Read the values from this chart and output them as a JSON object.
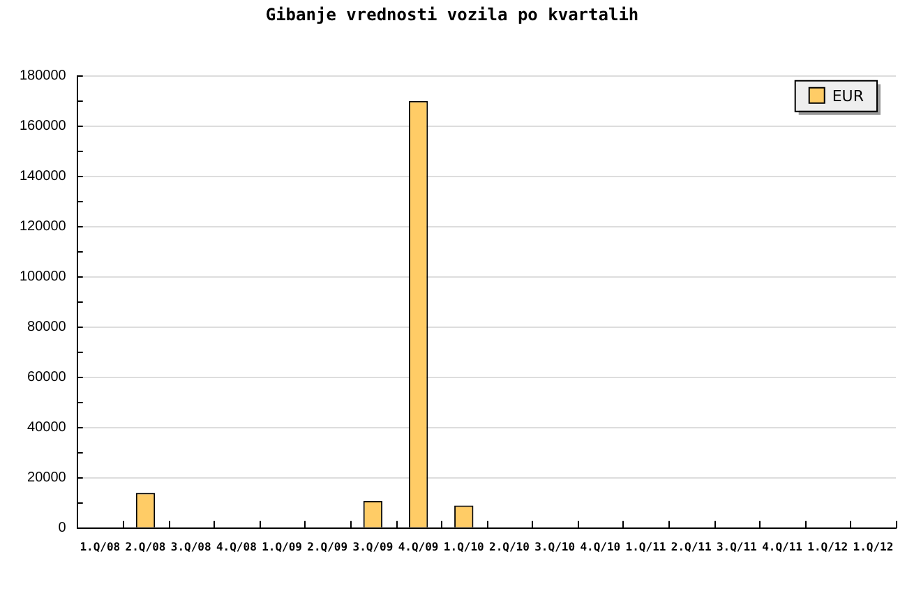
{
  "chart_data": {
    "type": "bar",
    "title": "Gibanje vrednosti vozila po kvartalih",
    "categories": [
      "1.Q/08",
      "2.Q/08",
      "3.Q/08",
      "4.Q/08",
      "1.Q/09",
      "2.Q/09",
      "3.Q/09",
      "4.Q/09",
      "1.Q/10",
      "2.Q/10",
      "3.Q/10",
      "4.Q/10",
      "1.Q/11",
      "2.Q/11",
      "3.Q/11",
      "4.Q/11",
      "1.Q/12",
      "1.Q/12"
    ],
    "series": [
      {
        "name": "EUR",
        "color": "#ffcc66",
        "values": [
          null,
          14000,
          null,
          null,
          null,
          null,
          10800,
          170000,
          9000,
          null,
          null,
          null,
          null,
          null,
          null,
          null,
          null,
          null
        ]
      }
    ],
    "ylim": [
      0,
      180000
    ],
    "yticks": [
      0,
      {
        "value": 10000,
        "label": null
      },
      20000,
      {
        "value": 30000,
        "label": null
      },
      40000,
      {
        "value": 50000,
        "label": null
      },
      60000,
      {
        "value": 70000,
        "label": null
      },
      80000,
      {
        "value": 90000,
        "label": null
      },
      100000,
      {
        "value": 110000,
        "label": null
      },
      120000,
      {
        "value": 130000,
        "label": null
      },
      140000,
      {
        "value": 150000,
        "label": null
      },
      160000,
      {
        "value": 170000,
        "label": null
      },
      180000
    ],
    "grid": "y",
    "legend": "top right"
  }
}
